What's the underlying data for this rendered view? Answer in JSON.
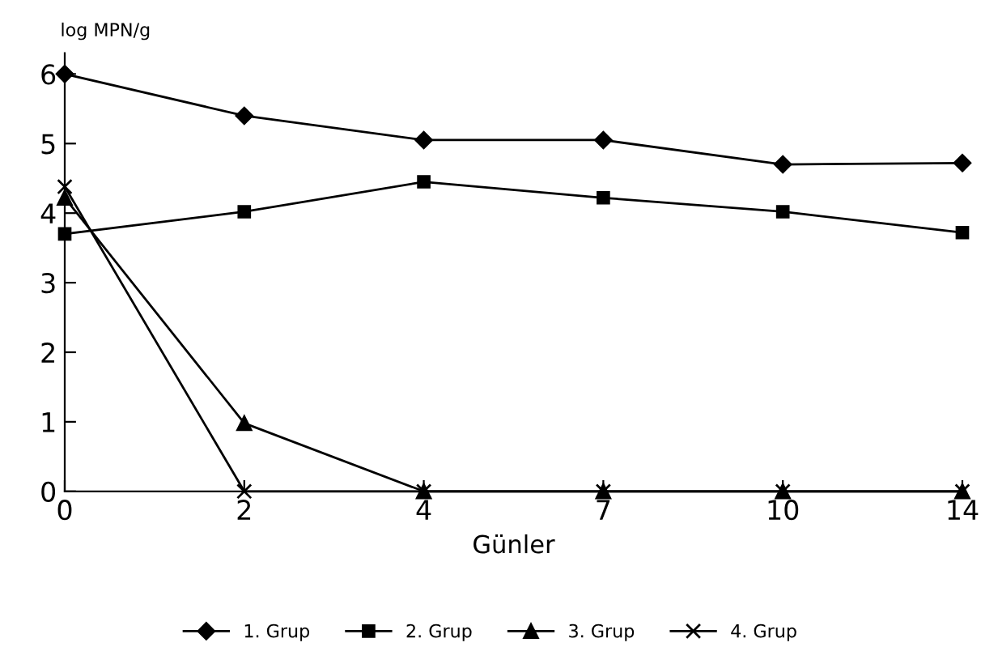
{
  "chart_data": {
    "type": "line",
    "xlabel": "Günler",
    "ylabel": "log MPN/g",
    "categories": [
      "0",
      "2",
      "4",
      "7",
      "10",
      "14"
    ],
    "ylim": [
      0,
      6.3
    ],
    "yticks": [
      0,
      1,
      2,
      3,
      4,
      5,
      6
    ],
    "grid": false,
    "legend": "bottom",
    "series": [
      {
        "name": "1. Grup",
        "color": "#000000",
        "marker": "diamond",
        "values": [
          6.0,
          5.4,
          5.05,
          5.05,
          4.7,
          4.72
        ]
      },
      {
        "name": "2. Grup",
        "color": "#000000",
        "marker": "square",
        "values": [
          3.7,
          4.02,
          4.45,
          4.22,
          4.02,
          3.72
        ]
      },
      {
        "name": "3. Grup",
        "color": "#000000",
        "marker": "triangle",
        "values": [
          4.22,
          0.98,
          0,
          0,
          0,
          0
        ]
      },
      {
        "name": "4. Grup",
        "color": "#000000",
        "marker": "cross",
        "values": [
          4.38,
          0,
          0,
          0,
          0,
          0
        ]
      }
    ]
  }
}
